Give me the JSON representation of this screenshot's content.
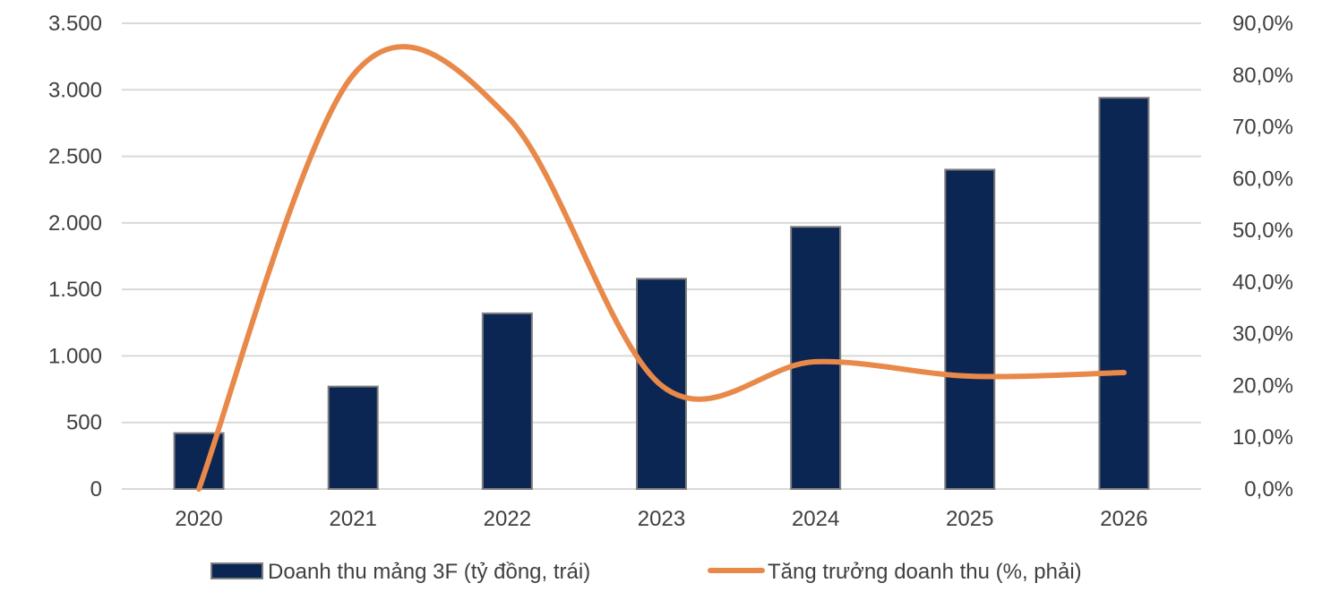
{
  "chart_data": {
    "type": "bar",
    "categories": [
      "2020",
      "2021",
      "2022",
      "2023",
      "2024",
      "2025",
      "2026"
    ],
    "series": [
      {
        "name": "Doanh thu mảng 3F (tỷ đồng, trái)",
        "type": "bar",
        "axis": "left",
        "values": [
          420,
          770,
          1320,
          1580,
          1970,
          2400,
          2940
        ]
      },
      {
        "name": "Tăng trưởng doanh thu (%, phải)",
        "type": "line",
        "axis": "right",
        "smooth": true,
        "values": [
          0.0,
          80.0,
          72.0,
          20.0,
          24.6,
          21.8,
          22.5
        ]
      }
    ],
    "y_left": {
      "ylim": [
        0,
        3500
      ],
      "ticks": [
        0,
        500,
        1000,
        1500,
        2000,
        2500,
        3000,
        3500
      ],
      "tick_labels": [
        "0",
        "500",
        "1.000",
        "1.500",
        "2.000",
        "2.500",
        "3.000",
        "3.500"
      ]
    },
    "y_right": {
      "ylim": [
        0,
        90
      ],
      "ticks": [
        0,
        10,
        20,
        30,
        40,
        50,
        60,
        70,
        80,
        90
      ],
      "tick_labels": [
        "0,0%",
        "10,0%",
        "20,0%",
        "30,0%",
        "40,0%",
        "50,0%",
        "60,0%",
        "70,0%",
        "80,0%",
        "90,0%"
      ]
    },
    "grid": true,
    "legend_position": "bottom",
    "colors": {
      "bar": "#0b2653",
      "bar_edge": "#7f7f7f",
      "line": "#e8894a",
      "grid": "#d9d9d9",
      "text": "#404040"
    }
  }
}
